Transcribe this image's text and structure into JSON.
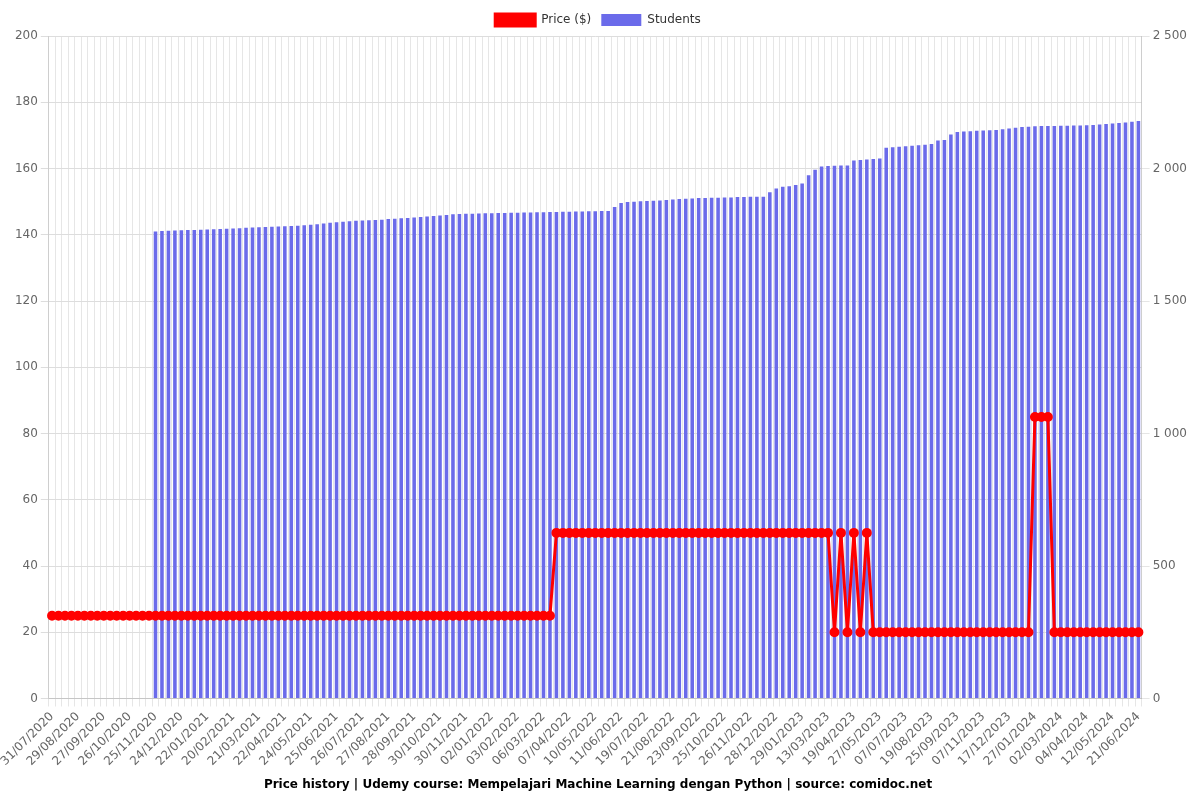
{
  "chart_data": {
    "type": "bar",
    "title": "Price history | Udemy course: Mempelajari Machine Learning dengan Python | source: comidoc.net",
    "categories": [
      "31/07/2020",
      null,
      null,
      null,
      "29/08/2020",
      null,
      null,
      null,
      "27/09/2020",
      null,
      null,
      null,
      "26/10/2020",
      null,
      null,
      null,
      "25/11/2020",
      null,
      null,
      null,
      "24/12/2020",
      null,
      null,
      null,
      "22/01/2021",
      null,
      null,
      null,
      "20/02/2021",
      null,
      null,
      null,
      "21/03/2021",
      null,
      null,
      null,
      "22/04/2021",
      null,
      null,
      null,
      "24/05/2021",
      null,
      null,
      null,
      "25/06/2021",
      null,
      null,
      null,
      "26/07/2021",
      null,
      null,
      null,
      "27/08/2021",
      null,
      null,
      null,
      "28/09/2021",
      null,
      null,
      null,
      "30/10/2021",
      null,
      null,
      null,
      "30/11/2021",
      null,
      null,
      null,
      "02/01/2022",
      null,
      null,
      null,
      "03/02/2022",
      null,
      null,
      null,
      "06/03/2022",
      null,
      null,
      null,
      "07/04/2022",
      null,
      null,
      null,
      "10/05/2022",
      null,
      null,
      null,
      "11/06/2022",
      null,
      null,
      null,
      "19/07/2022",
      null,
      null,
      null,
      "21/08/2022",
      null,
      null,
      null,
      "23/09/2022",
      null,
      null,
      null,
      "25/10/2022",
      null,
      null,
      null,
      "26/11/2022",
      null,
      null,
      null,
      "28/12/2022",
      null,
      null,
      null,
      "29/01/2023",
      null,
      null,
      null,
      "13/03/2023",
      null,
      null,
      null,
      "19/04/2023",
      null,
      null,
      null,
      "27/05/2023",
      null,
      null,
      null,
      "07/07/2023",
      null,
      null,
      null,
      "19/08/2023",
      null,
      null,
      null,
      "25/09/2023",
      null,
      null,
      null,
      "07/11/2023",
      null,
      null,
      null,
      "17/12/2023",
      null,
      null,
      null,
      "27/01/2024",
      null,
      null,
      null,
      "02/03/2024",
      null,
      null,
      null,
      "04/04/2024",
      null,
      null,
      null,
      "12/05/2024",
      null,
      null,
      null,
      "21/06/2024"
    ],
    "series": [
      {
        "name": "Price ($)",
        "type": "line",
        "color": "#ff0000",
        "marker": "circle",
        "values": [
          25,
          25,
          25,
          25,
          25,
          25,
          25,
          25,
          25,
          25,
          25,
          25,
          25,
          25,
          25,
          25,
          25,
          25,
          25,
          25,
          25,
          25,
          25,
          25,
          25,
          25,
          25,
          25,
          25,
          25,
          25,
          25,
          25,
          25,
          25,
          25,
          25,
          25,
          25,
          25,
          25,
          25,
          25,
          25,
          25,
          25,
          25,
          25,
          25,
          25,
          25,
          25,
          25,
          25,
          25,
          25,
          25,
          25,
          25,
          25,
          25,
          25,
          25,
          25,
          25,
          25,
          25,
          25,
          25,
          25,
          25,
          25,
          25,
          25,
          25,
          25,
          25,
          25,
          50,
          50,
          50,
          50,
          50,
          50,
          50,
          50,
          50,
          50,
          50,
          50,
          50,
          50,
          50,
          50,
          50,
          50,
          50,
          50,
          50,
          50,
          50,
          50,
          50,
          50,
          50,
          50,
          50,
          50,
          50,
          50,
          50,
          50,
          50,
          50,
          50,
          50,
          50,
          50,
          50,
          50,
          50,
          20,
          50,
          20,
          50,
          20,
          50,
          20,
          20,
          20,
          20,
          20,
          20,
          20,
          20,
          20,
          20,
          20,
          20,
          20,
          20,
          20,
          20,
          20,
          20,
          20,
          20,
          20,
          20,
          20,
          20,
          20,
          85,
          85,
          85,
          20,
          20,
          20,
          20,
          20,
          20,
          20,
          20,
          20,
          20,
          20,
          20,
          20,
          20
        ]
      },
      {
        "name": "Students",
        "type": "bar",
        "color": "#6b6bea",
        "axis": "y2",
        "values": [
          0,
          0,
          0,
          0,
          0,
          0,
          0,
          0,
          0,
          0,
          0,
          0,
          0,
          0,
          0,
          0,
          1762,
          1764,
          1765,
          1766,
          1767,
          1768,
          1768,
          1769,
          1770,
          1771,
          1772,
          1773,
          1774,
          1775,
          1776,
          1777,
          1778,
          1779,
          1780,
          1781,
          1782,
          1783,
          1784,
          1786,
          1788,
          1790,
          1792,
          1795,
          1797,
          1799,
          1801,
          1803,
          1804,
          1805,
          1806,
          1807,
          1809,
          1810,
          1812,
          1813,
          1815,
          1817,
          1819,
          1821,
          1823,
          1825,
          1827,
          1828,
          1829,
          1829,
          1830,
          1831,
          1831,
          1832,
          1832,
          1833,
          1833,
          1834,
          1834,
          1835,
          1835,
          1836,
          1836,
          1837,
          1837,
          1838,
          1838,
          1839,
          1839,
          1840,
          1840,
          1855,
          1870,
          1874,
          1875,
          1876,
          1877,
          1878,
          1879,
          1881,
          1883,
          1885,
          1886,
          1887,
          1889,
          1889,
          1890,
          1890,
          1891,
          1891,
          1892,
          1892,
          1893,
          1893,
          1893,
          1910,
          1925,
          1931,
          1933,
          1938,
          1943,
          1975,
          1995,
          2008,
          2009,
          2010,
          2011,
          2011,
          2030,
          2032,
          2034,
          2036,
          2038,
          2078,
          2080,
          2082,
          2084,
          2086,
          2088,
          2090,
          2092,
          2106,
          2108,
          2128,
          2138,
          2140,
          2141,
          2142,
          2143,
          2144,
          2145,
          2148,
          2151,
          2154,
          2157,
          2158,
          2159,
          2160,
          2160,
          2160,
          2161,
          2161,
          2162,
          2162,
          2163,
          2164,
          2166,
          2168,
          2170,
          2172,
          2174,
          2176,
          2179
        ]
      }
    ],
    "ylim": [
      0,
      200
    ],
    "yticks": [
      0,
      20,
      40,
      60,
      80,
      100,
      120,
      140,
      160,
      180,
      200
    ],
    "y2lim": [
      0,
      2500
    ],
    "y2ticks": [
      0,
      500,
      {
        "value": 1000,
        "label": "1 000"
      },
      {
        "value": 1500,
        "label": "1 500"
      },
      {
        "value": 2000,
        "label": "2 000"
      },
      {
        "value": 2500,
        "label": "2 500"
      }
    ],
    "grid": true,
    "legend": "top"
  }
}
